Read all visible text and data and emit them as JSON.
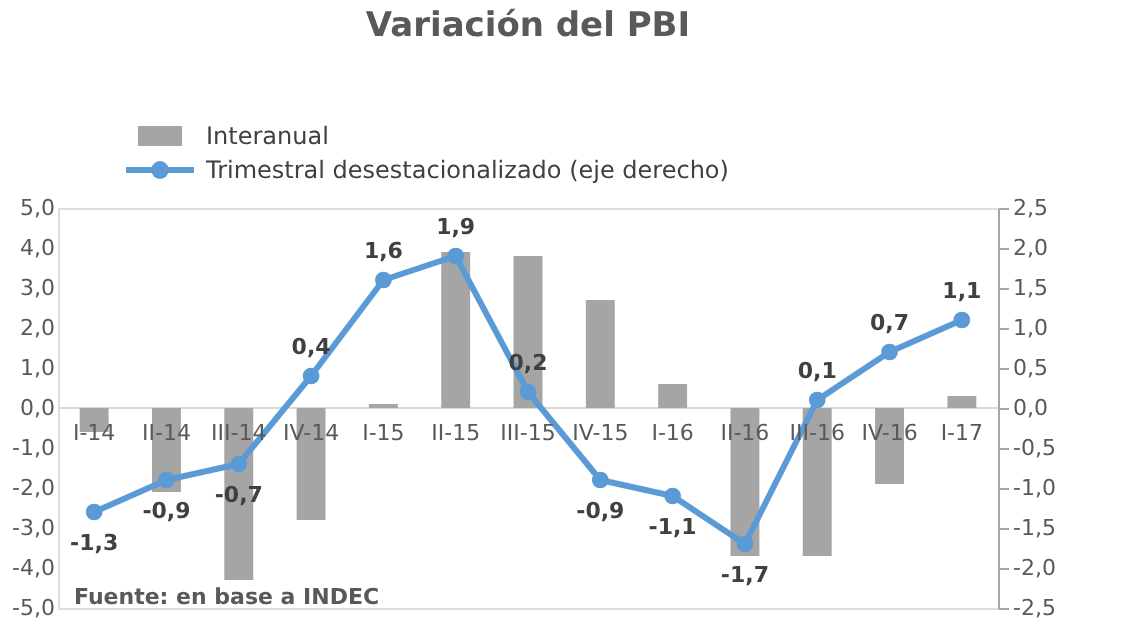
{
  "chart_data": {
    "type": "bar",
    "title": "Variación del PBI",
    "categories": [
      "I-14",
      "II-14",
      "III-14",
      "IV-14",
      "I-15",
      "II-15",
      "III-15",
      "IV-15",
      "I-16",
      "II-16",
      "III-16",
      "IV-16",
      "I-17"
    ],
    "series": [
      {
        "name": "Interanual",
        "type": "bar",
        "color": "#a5a5a5",
        "values": [
          -0.6,
          -2.1,
          -4.3,
          -2.8,
          0.1,
          3.9,
          3.8,
          2.7,
          0.6,
          -3.7,
          -3.7,
          -1.9,
          0.3
        ]
      },
      {
        "name": "Trimestral desestacionalizado (eje derecho)",
        "type": "line",
        "axis": "y2",
        "color": "#5b9bd5",
        "marker": "circle",
        "values": [
          -1.3,
          -0.9,
          -0.7,
          0.4,
          1.6,
          1.9,
          0.2,
          -0.9,
          -1.1,
          -1.7,
          0.1,
          0.7,
          1.1
        ],
        "value_labels": [
          "-1,3",
          "-0,9",
          "-0,7",
          "0,4",
          "1,6",
          "1,9",
          "0,2",
          "-0,9",
          "-1,1",
          "-1,7",
          "0,1",
          "0,7",
          "1,1"
        ]
      }
    ],
    "ylim": [
      -5,
      5
    ],
    "yticks": [
      {
        "value": 5,
        "label": "5,0"
      },
      {
        "value": 4,
        "label": "4,0"
      },
      {
        "value": 3,
        "label": "3,0"
      },
      {
        "value": 2,
        "label": "2,0"
      },
      {
        "value": 1,
        "label": "1,0"
      },
      {
        "value": 0,
        "label": "0,0"
      },
      {
        "value": -1,
        "label": "-1,0"
      },
      {
        "value": -2,
        "label": "-2,0"
      },
      {
        "value": -3,
        "label": "-3,0"
      },
      {
        "value": -4,
        "label": "-4,0"
      },
      {
        "value": -5,
        "label": "-5,0"
      }
    ],
    "y2lim": [
      -2.5,
      2.5
    ],
    "y2ticks": [
      {
        "value": 2.5,
        "label": "2,5"
      },
      {
        "value": 2,
        "label": "2,0"
      },
      {
        "value": 1.5,
        "label": "1,5"
      },
      {
        "value": 1,
        "label": "1,0"
      },
      {
        "value": 0.5,
        "label": "0,5"
      },
      {
        "value": 0,
        "label": "0,0"
      },
      {
        "value": -0.5,
        "label": "-0,5"
      },
      {
        "value": -1,
        "label": "-1,0"
      },
      {
        "value": -1.5,
        "label": "-1,5"
      },
      {
        "value": -2,
        "label": "-2,0"
      },
      {
        "value": -2.5,
        "label": "-2,5"
      }
    ],
    "grid": false,
    "legend": "top left",
    "annotations": [
      "Fuente: en base a INDEC"
    ]
  }
}
